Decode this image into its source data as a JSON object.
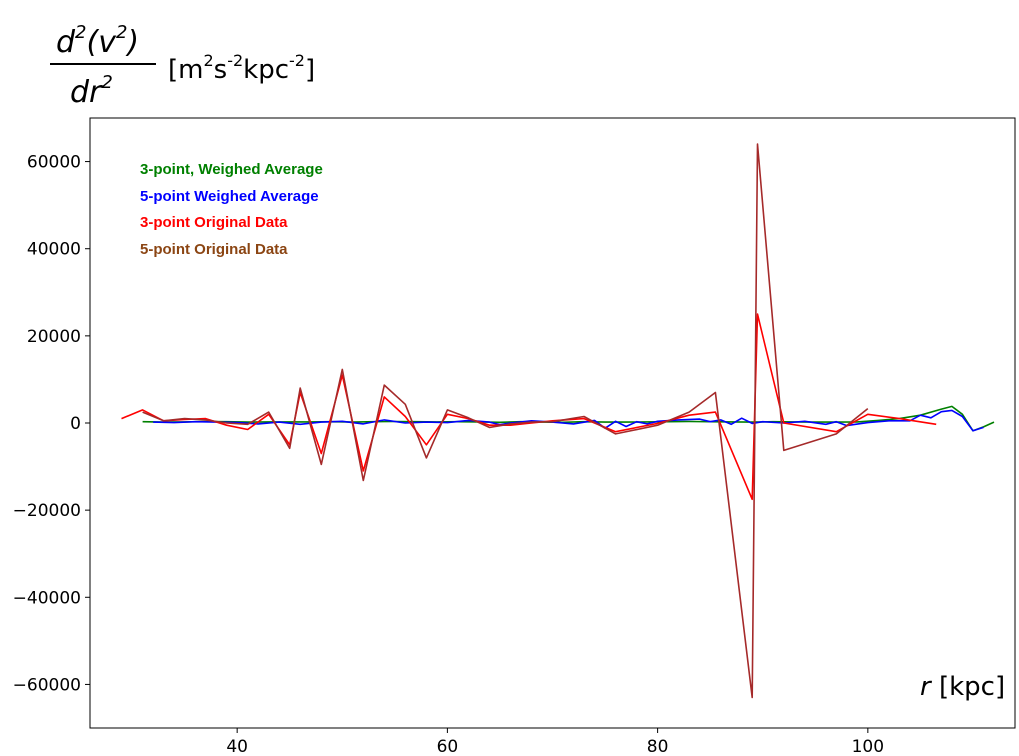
{
  "chart_data": {
    "type": "line",
    "ylabel_parts": {
      "numerator_d": "d",
      "numerator_sup": "2",
      "numerator_rest": "(v",
      "numerator_v_sup": "2",
      "numerator_close": ")",
      "denominator_dr": "dr",
      "denominator_sup": "2",
      "units_open": "[m",
      "units_m_sup": "2",
      "units_s": "s",
      "units_s_sup": "-2",
      "units_kpc": "kpc",
      "units_kpc_sup": "-2",
      "units_close": "]"
    },
    "xlabel": {
      "var": "r",
      "unit": "[kpc]"
    },
    "xlim": [
      26,
      114
    ],
    "ylim": [
      -70000,
      70000
    ],
    "xticks": [
      40,
      60,
      80,
      100
    ],
    "yticks": [
      -60000,
      -40000,
      -20000,
      0,
      20000,
      40000,
      60000
    ],
    "ytick_labels": [
      "−60000",
      "−40000",
      "−20000",
      "0",
      "20000",
      "40000",
      "60000"
    ],
    "grid": false,
    "legend_position": "top-left",
    "series": [
      {
        "name": "3-point, Weighed Average",
        "color": "#008000",
        "x": [
          31,
          33,
          35,
          37,
          39,
          41,
          43,
          45,
          47,
          49,
          51,
          53,
          55,
          57,
          59,
          61,
          63,
          65,
          67,
          69,
          71,
          73,
          75,
          77,
          79,
          81,
          83,
          85,
          87,
          89,
          91,
          93,
          95,
          97,
          99,
          101,
          103,
          105,
          107,
          108,
          109,
          110,
          111,
          112
        ],
        "y": [
          300,
          200,
          250,
          350,
          300,
          200,
          250,
          250,
          250,
          300,
          200,
          300,
          350,
          300,
          250,
          300,
          250,
          150,
          300,
          200,
          150,
          300,
          200,
          200,
          250,
          300,
          350,
          300,
          250,
          200,
          300,
          250,
          200,
          200,
          250,
          600,
          1000,
          1800,
          3200,
          3800,
          2000,
          -1800,
          -900,
          200
        ]
      },
      {
        "name": "5-point Weighed Average",
        "color": "#0000ff",
        "x": [
          32,
          34,
          36,
          38,
          40,
          42,
          44,
          46,
          48,
          50,
          52,
          54,
          56,
          58,
          60,
          62,
          64,
          65,
          66,
          68,
          70,
          72,
          74,
          75,
          76,
          77,
          78,
          79,
          80,
          82,
          84,
          85,
          86,
          87,
          88,
          89,
          90,
          92,
          94,
          96,
          97,
          98,
          100,
          102,
          104,
          105,
          106,
          107,
          108,
          109,
          110,
          111
        ],
        "y": [
          200,
          100,
          300,
          200,
          100,
          -200,
          200,
          -300,
          200,
          400,
          -200,
          700,
          0,
          200,
          100,
          600,
          200,
          -400,
          0,
          500,
          200,
          -200,
          600,
          -1200,
          400,
          -800,
          300,
          -200,
          400,
          700,
          900,
          300,
          700,
          -300,
          1100,
          -100,
          300,
          0,
          400,
          -300,
          300,
          -600,
          100,
          500,
          500,
          1800,
          1200,
          2600,
          2900,
          1500,
          -1800,
          -1000
        ]
      },
      {
        "name": "3-point Original Data",
        "color": "#ff0000",
        "x": [
          29,
          31,
          33,
          35,
          37,
          39,
          41,
          43,
          45,
          46,
          48,
          50,
          52,
          54,
          56,
          58,
          60,
          62,
          64,
          66,
          68,
          70,
          73,
          76,
          80,
          83,
          85.5,
          89,
          89.5,
          92,
          97,
          100,
          103,
          106.5
        ],
        "y": [
          1000,
          3000,
          500,
          800,
          1000,
          -500,
          -1500,
          2000,
          -5000,
          7000,
          -7000,
          11000,
          -11000,
          6000,
          1500,
          -5000,
          2000,
          1000,
          -500,
          -500,
          0,
          500,
          1000,
          -2000,
          -100,
          1800,
          2500,
          -17500,
          25000,
          0,
          -2000,
          2000,
          1000,
          -300
        ]
      },
      {
        "name": "5-point Original Data",
        "color": "#a52a2a",
        "x": [
          31,
          33,
          35,
          37,
          39,
          41,
          43,
          45,
          46,
          48,
          50,
          52,
          54,
          56,
          58,
          60,
          62,
          64,
          66,
          68,
          70,
          73,
          76,
          80,
          83,
          85.5,
          89,
          89.5,
          92,
          97,
          100
        ],
        "y": [
          2500,
          500,
          1000,
          700,
          0,
          -300,
          2500,
          -5800,
          8000,
          -9500,
          12300,
          -13200,
          8700,
          4300,
          -8000,
          3000,
          1200,
          -1000,
          -200,
          200,
          300,
          1500,
          -2500,
          -500,
          2500,
          7000,
          -63000,
          64000,
          -6300,
          -2500,
          3300
        ]
      }
    ]
  }
}
